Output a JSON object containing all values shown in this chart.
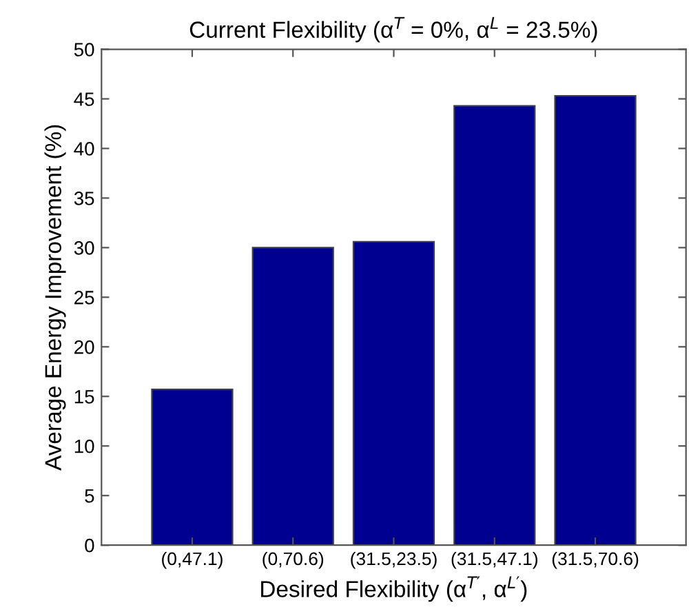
{
  "chart_data": {
    "type": "bar",
    "title": "Current Flexibility (α$^{T}$ = 0%, α$^{L}$ = 23.5%)",
    "xlabel": "Desired Flexibility (α$^{T′}$, α$^{L′}$)",
    "ylabel": "Average Energy Improvement (%)",
    "categories": [
      "(0,47.1)",
      "(0,70.6)",
      "(31.5,23.5)",
      "(31.5,47.1)",
      "(31.5,70.6)"
    ],
    "values": [
      15.7,
      30.0,
      30.6,
      44.3,
      45.3
    ],
    "color": "#000090",
    "ylim": [
      0,
      50
    ],
    "yticks": [
      0,
      5,
      10,
      15,
      20,
      25,
      30,
      35,
      40,
      45,
      50
    ],
    "grid": false,
    "legend": false
  }
}
